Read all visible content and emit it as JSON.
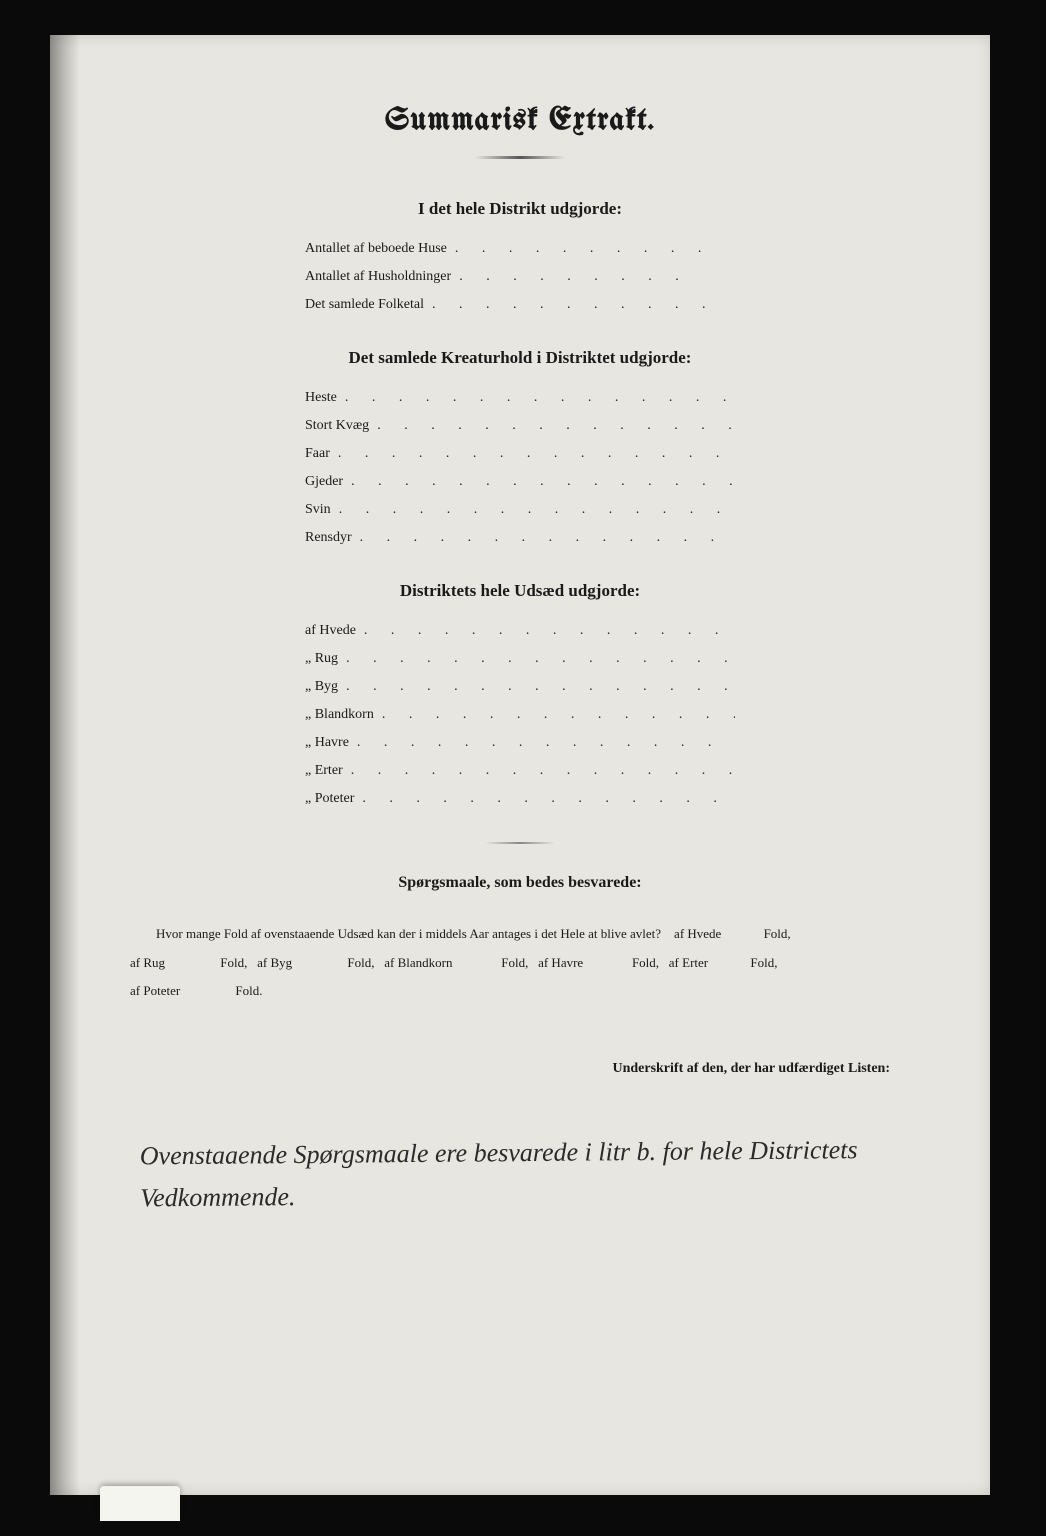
{
  "title": "Summarisk Extrakt.",
  "section1": {
    "heading": "I det hele Distrikt udgjorde:",
    "items": [
      "Antallet af beboede Huse",
      "Antallet af Husholdninger",
      "Det samlede Folketal"
    ]
  },
  "section2": {
    "heading": "Det samlede Kreaturhold i Distriktet udgjorde:",
    "items": [
      "Heste",
      "Stort Kvæg",
      "Faar",
      "Gjeder",
      "Svin",
      "Rensdyr"
    ]
  },
  "section3": {
    "heading": "Distriktets hele Udsæd udgjorde:",
    "items": [
      "af Hvede",
      "„ Rug",
      "„ Byg",
      "„ Blandkorn",
      "„ Havre",
      "„ Erter",
      "„ Poteter"
    ]
  },
  "questions": {
    "heading": "Spørgsmaale, som bedes besvarede:",
    "intro": "Hvor mange Fold af ovenstaaende Udsæd kan der i middels Aar antages i det Hele at blive avlet?",
    "parts": [
      "af Hvede",
      "Fold,",
      "af Rug",
      "Fold,",
      "af Byg",
      "Fold,",
      "af Blandkorn",
      "Fold,",
      "af Havre",
      "Fold,",
      "af Erter",
      "Fold,",
      "af Poteter",
      "Fold."
    ]
  },
  "signature_label": "Underskrift af den, der har udfærdiget Listen:",
  "handwritten_note": "Ovenstaaende Spørgsmaale ere besvarede i litr b. for hele Districtets Vedkommende.",
  "colors": {
    "page_bg": "#e8e6e0",
    "frame_bg": "#0a0a0a",
    "text": "#1a1a1a",
    "handwriting": "#2a2a2a"
  },
  "typography": {
    "title_fontsize": 32,
    "heading_fontsize": 17,
    "body_fontsize": 14,
    "handwriting_fontsize": 26
  }
}
